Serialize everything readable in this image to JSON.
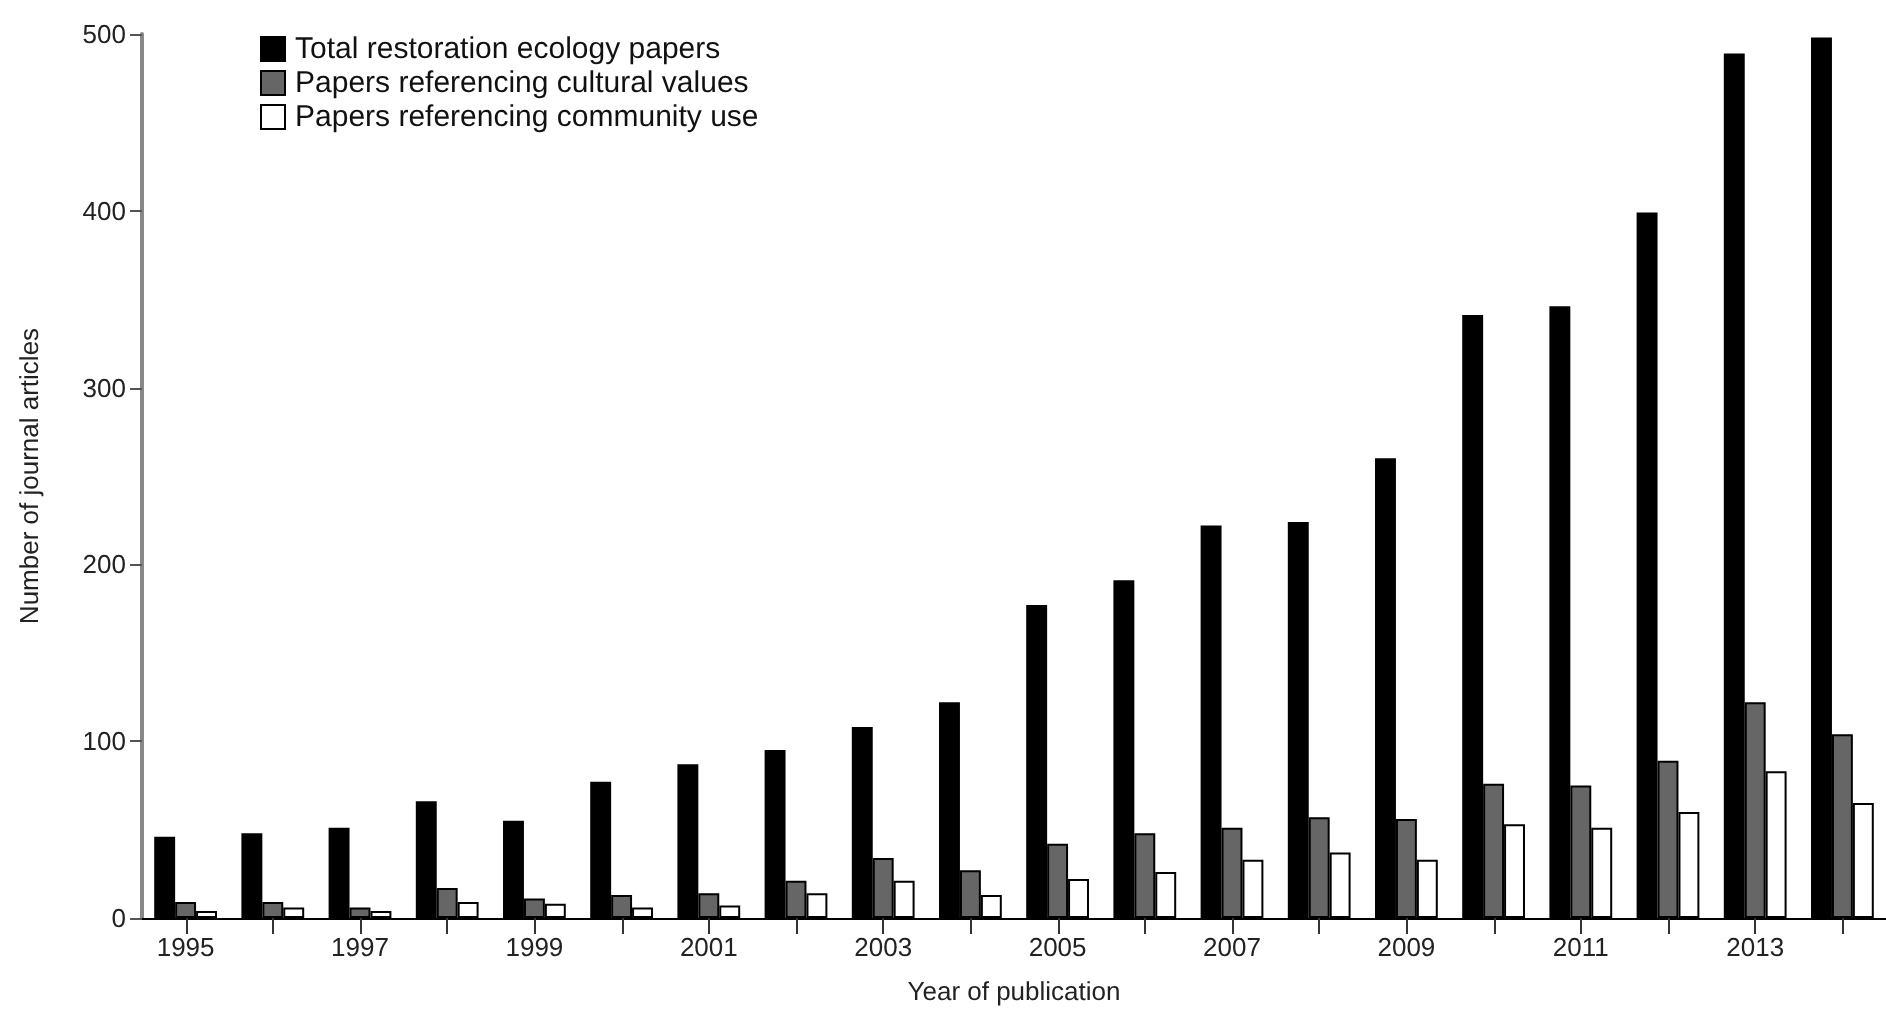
{
  "chart_data": {
    "type": "bar",
    "xlabel": "Year of publication",
    "ylabel": "Number of journal articles",
    "categories": [
      "1995",
      null,
      "1997",
      null,
      "1999",
      null,
      "2001",
      null,
      "2003",
      null,
      "2005",
      null,
      "2007",
      null,
      "2009",
      null,
      "2011",
      null,
      "2013",
      null
    ],
    "series": [
      {
        "name": "Total restoration ecology papers",
        "color": "#000000",
        "values": [
          46,
          48,
          51,
          66,
          55,
          77,
          87,
          95,
          108,
          122,
          177,
          191,
          222,
          224,
          260,
          341,
          346,
          399,
          489,
          498
        ]
      },
      {
        "name": "Papers referencing cultural values",
        "color": "#666666",
        "values": [
          9,
          9,
          6,
          17,
          11,
          13,
          14,
          21,
          34,
          27,
          42,
          48,
          51,
          57,
          56,
          76,
          75,
          89,
          122,
          104
        ]
      },
      {
        "name": "Papers referencing community use",
        "color": "#ffffff",
        "values": [
          4,
          6,
          4,
          9,
          8,
          6,
          7,
          14,
          21,
          13,
          22,
          26,
          33,
          37,
          33,
          53,
          51,
          60,
          83,
          65
        ]
      }
    ],
    "ylim": [
      0,
      500
    ],
    "yticks": [
      0,
      100,
      200,
      300,
      400,
      500
    ],
    "grid": false,
    "legend": "top left"
  }
}
